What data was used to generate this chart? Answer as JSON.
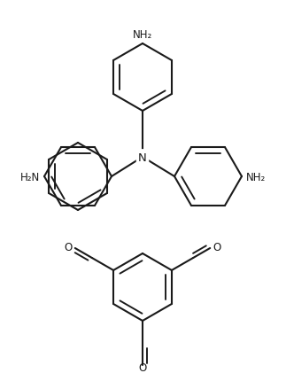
{
  "background_color": "#ffffff",
  "line_color": "#1a1a1a",
  "line_width": 1.5,
  "font_size_label": 8.5,
  "fig_width": 3.23,
  "fig_height": 4.31,
  "dpi": 100,
  "N_label": "N",
  "NH2_top": "NH₂",
  "NH2_right": "NH₂",
  "H2N_left": "H₂N",
  "O_label": "O"
}
